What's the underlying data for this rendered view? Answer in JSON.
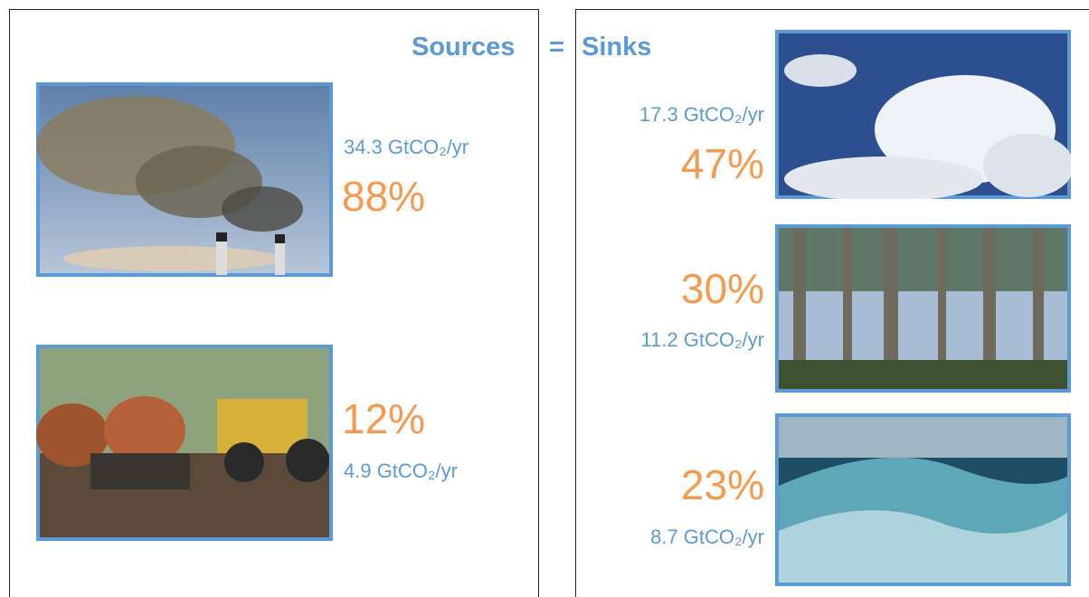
{
  "title": {
    "sources": "Sources",
    "equals": "=",
    "sinks": "Sinks"
  },
  "sources": [
    {
      "amount": "34.3 GtCO₂/yr",
      "share": "88%"
    },
    {
      "amount": "4.9 GtCO₂/yr",
      "share": "12%"
    }
  ],
  "sinks": [
    {
      "amount": "17.3 GtCO₂/yr",
      "share": "47%"
    },
    {
      "amount": "11.2 GtCO₂/yr",
      "share": "30%"
    },
    {
      "amount": "8.7 GtCO₂/yr",
      "share": "23%"
    }
  ]
}
